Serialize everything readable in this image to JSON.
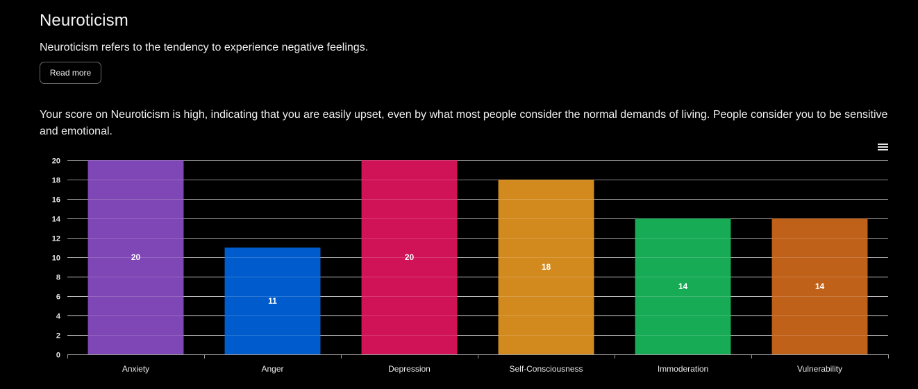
{
  "header": {
    "title": "Neuroticism",
    "subtitle": "Neuroticism refers to the tendency to experience negative feelings.",
    "read_more_label": "Read more"
  },
  "description": "Your score on Neuroticism is high, indicating that you are easily upset, even by what most people consider the normal demands of living. People consider you to be sensitive and emotional.",
  "toolbar": {
    "menu_icon": "hamburger-menu-icon"
  },
  "chart_data": {
    "type": "bar",
    "title": "",
    "xlabel": "",
    "ylabel": "",
    "categories": [
      "Anxiety",
      "Anger",
      "Depression",
      "Self-Consciousness",
      "Immoderation",
      "Vulnerability"
    ],
    "values": [
      20,
      11,
      20,
      18,
      14,
      14
    ],
    "data_labels": [
      "20",
      "11",
      "20",
      "18",
      "14",
      "14"
    ],
    "colors": [
      "#7e47b5",
      "#005ccc",
      "#d01257",
      "#d28a1f",
      "#17ab56",
      "#c0611a"
    ],
    "ylim": [
      0,
      20
    ],
    "yticks": [
      0,
      2,
      4,
      6,
      8,
      10,
      12,
      14,
      16,
      18,
      20
    ],
    "ytick_labels": [
      "0",
      "2",
      "4",
      "6",
      "8",
      "10",
      "12",
      "14",
      "16",
      "18",
      "20"
    ],
    "grid": true,
    "legend": "none"
  }
}
